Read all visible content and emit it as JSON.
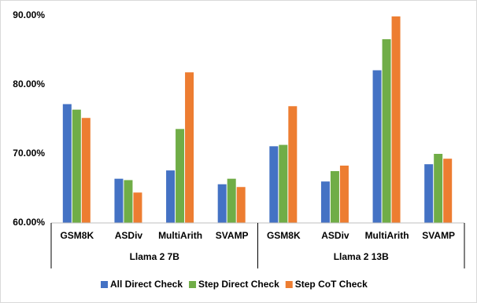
{
  "chart_data": {
    "type": "bar",
    "categories": [
      "GSM8K",
      "ASDiv",
      "MultiArith",
      "SVAMP",
      "GSM8K",
      "ASDiv",
      "MultiArith",
      "SVAMP"
    ],
    "groups": [
      "Llama 2 7B",
      "Llama 2 13B"
    ],
    "series": [
      {
        "name": "All Direct Check",
        "color": "#4472c4",
        "values": [
          77.2,
          66.4,
          67.6,
          65.6,
          71.1,
          66.0,
          82.1,
          68.5
        ]
      },
      {
        "name": "Step Direct Check",
        "color": "#70ad47",
        "values": [
          76.4,
          66.2,
          73.6,
          66.4,
          71.3,
          67.5,
          86.6,
          70.0
        ]
      },
      {
        "name": "Step CoT Check",
        "color": "#ed7d31",
        "values": [
          75.2,
          64.4,
          81.8,
          65.2,
          76.9,
          68.3,
          89.9,
          69.3
        ]
      }
    ],
    "ylim": [
      60,
      90
    ],
    "yticks": [
      {
        "value": 60,
        "label": "60.00%"
      },
      {
        "value": 70,
        "label": "70.00%"
      },
      {
        "value": 80,
        "label": "80.00%"
      },
      {
        "value": 90,
        "label": "90.00%"
      }
    ],
    "grid": false,
    "legend": "bottom"
  }
}
